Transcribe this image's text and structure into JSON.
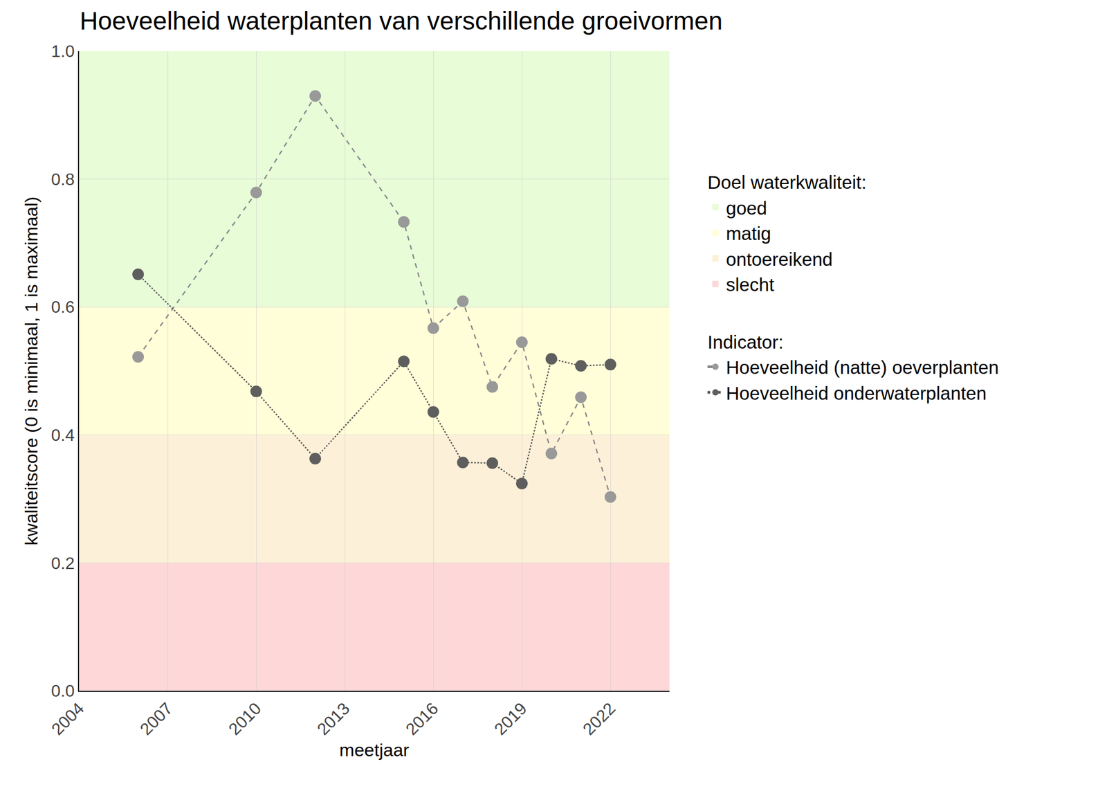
{
  "chart_data": {
    "type": "line",
    "title": "Hoeveelheid waterplanten van verschillende groeivormen",
    "x_label": "meetjaar",
    "y_label": "kwaliteitscore (0 is minimaal, 1 is maximaal)",
    "x": [
      2006,
      2010,
      2012,
      2015,
      2016,
      2017,
      2018,
      2019,
      2020,
      2021,
      2022
    ],
    "series": [
      {
        "name": "Hoeveelheid (natte) oeverplanten",
        "color": "#999999",
        "line_style": "dash",
        "marker": "circle",
        "values": [
          0.522,
          0.779,
          0.93,
          0.733,
          0.567,
          0.609,
          0.475,
          0.545,
          0.371,
          0.459,
          0.303
        ]
      },
      {
        "name": "Hoeveelheid onderwaterplanten",
        "color": "#5e5e5e",
        "line_style": "dot",
        "marker": "circle",
        "values": [
          0.651,
          0.468,
          0.363,
          0.515,
          0.436,
          0.357,
          0.356,
          0.324,
          0.519,
          0.508,
          0.51
        ]
      }
    ],
    "series_legend_title": "Indicator:",
    "bands_legend_title": "Doel waterkwaliteit:",
    "bands": [
      {
        "name": "goed",
        "from": 0.6,
        "to": 1.0,
        "color": "#e8fcd8"
      },
      {
        "name": "matig",
        "from": 0.4,
        "to": 0.6,
        "color": "#fffed8"
      },
      {
        "name": "ontoereikend",
        "from": 0.2,
        "to": 0.4,
        "color": "#fdf0d8"
      },
      {
        "name": "slecht",
        "from": 0.0,
        "to": 0.2,
        "color": "#fed8d9"
      }
    ],
    "xlim": [
      2004,
      2024
    ],
    "xticks": [
      2004,
      2007,
      2010,
      2013,
      2016,
      2019,
      2022
    ],
    "ylim": [
      0,
      1
    ],
    "yticks": [
      {
        "value": 0,
        "label": "0.0"
      },
      0.2,
      0.4,
      0.6,
      0.8,
      {
        "value": 1,
        "label": "1.0"
      }
    ],
    "grid": true
  }
}
